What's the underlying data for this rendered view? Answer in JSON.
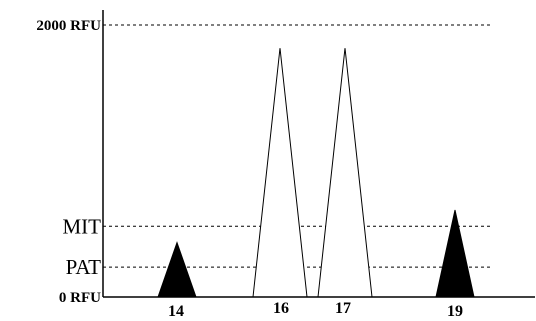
{
  "chart_data": {
    "type": "diagram",
    "y_labels": {
      "top": "2000 RFU",
      "mit": "MIT",
      "pat": "PAT",
      "zero": "0 RFU"
    },
    "thresholds": {
      "top": 2000,
      "mit": 520,
      "pat": 220,
      "zero": 0
    },
    "ylim": [
      0,
      2000
    ],
    "peaks": [
      {
        "label": "14",
        "height": 400,
        "filled": true
      },
      {
        "label": "16",
        "height": 1830,
        "filled": false
      },
      {
        "label": "17",
        "height": 1830,
        "filled": false
      },
      {
        "label": "19",
        "height": 640,
        "filled": true
      }
    ],
    "colors": {
      "stroke": "#000000",
      "filled": "#000000",
      "open": "#ffffff"
    }
  }
}
